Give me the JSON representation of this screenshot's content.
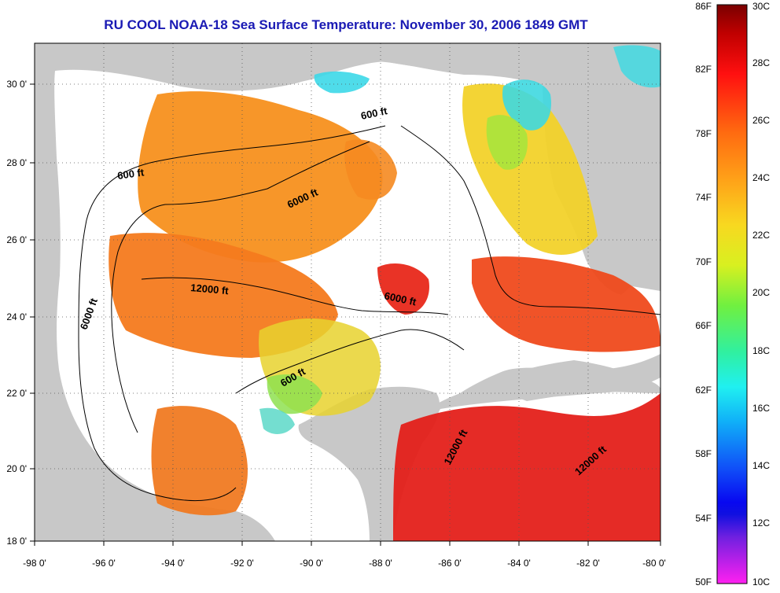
{
  "title": "RU COOL  NOAA-18  Sea Surface Temperature:  November 30, 2006 1849 GMT",
  "longitude_labels": [
    "-98 0'",
    "-96 0'",
    "-94 0'",
    "-92 0'",
    "-90 0'",
    "-88 0'",
    "-86 0'",
    "-84 0'",
    "-82 0'",
    "-80 0'"
  ],
  "latitude_labels": [
    "30 0'",
    "28 0'",
    "26 0'",
    "24 0'",
    "22 0'",
    "20 0'",
    "18 0'"
  ],
  "contour_labels": [
    "600 ft",
    "600 ft",
    "6000 ft",
    "12000 ft",
    "6000 ft",
    "6000 ft",
    "600 ft",
    "12000 ft",
    "12000 ft"
  ],
  "colorbar": {
    "fahrenheit_labels": [
      "86F",
      "82F",
      "78F",
      "74F",
      "70F",
      "66F",
      "62F",
      "58F",
      "54F",
      "50F"
    ],
    "celsius_labels": [
      "30C",
      "28C",
      "26C",
      "24C",
      "22C",
      "20C",
      "18C",
      "16C",
      "14C",
      "12C",
      "10C"
    ]
  },
  "colors": {
    "land": "#c8c8c8",
    "no_data": "#ffffff",
    "title": "#1a1ab4",
    "warm": "#e8201a",
    "orange": "#f88a1e",
    "yellow": "#f0e020",
    "cyan": "#30e0e8"
  }
}
